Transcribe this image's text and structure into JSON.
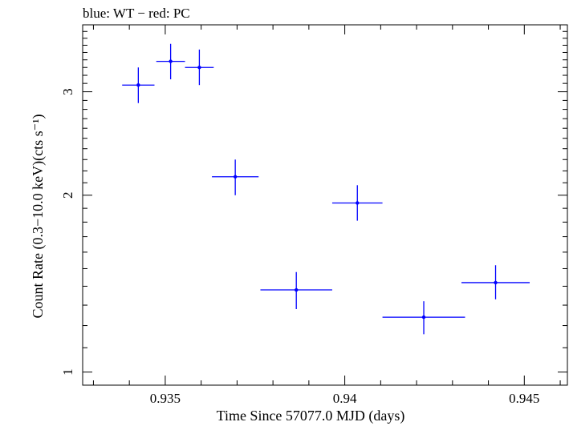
{
  "chart_data": {
    "type": "scatter",
    "title": "blue: WT − red: PC",
    "xlabel": "Time Since 57077.0 MJD (days)",
    "ylabel": "Count Rate (0.3−10.0 keV)(cts s⁻¹)",
    "xlim": [
      0.9327,
      0.9462
    ],
    "ylim": [
      0.95,
      3.9
    ],
    "y_scale": "log",
    "x_tick_labels": [
      "0.935",
      "0.94",
      "0.945"
    ],
    "x_ticks": [
      0.935,
      0.94,
      0.945
    ],
    "y_tick_labels": [
      "1",
      "2",
      "3"
    ],
    "y_ticks": [
      1,
      2,
      3
    ],
    "grid": false,
    "series": [
      {
        "color": "#0000ff",
        "points": [
          {
            "x": 0.93425,
            "xerr": 0.00045,
            "y": 3.08,
            "y_low": 2.87,
            "y_high": 3.3
          },
          {
            "x": 0.93515,
            "xerr": 0.0004,
            "y": 3.38,
            "y_low": 3.15,
            "y_high": 3.62
          },
          {
            "x": 0.93595,
            "xerr": 0.0004,
            "y": 3.3,
            "y_low": 3.08,
            "y_high": 3.54
          },
          {
            "x": 0.93695,
            "xerr": 0.00065,
            "y": 2.15,
            "y_low": 2.0,
            "y_high": 2.3
          },
          {
            "x": 0.93865,
            "xerr": 0.001,
            "y": 1.38,
            "y_low": 1.28,
            "y_high": 1.48
          },
          {
            "x": 0.94035,
            "xerr": 0.0007,
            "y": 1.94,
            "y_low": 1.81,
            "y_high": 2.08
          },
          {
            "x": 0.9422,
            "xerr": 0.00115,
            "y": 1.24,
            "y_low": 1.16,
            "y_high": 1.32
          },
          {
            "x": 0.9442,
            "xerr": 0.00095,
            "y": 1.42,
            "y_low": 1.33,
            "y_high": 1.52
          }
        ]
      }
    ]
  }
}
